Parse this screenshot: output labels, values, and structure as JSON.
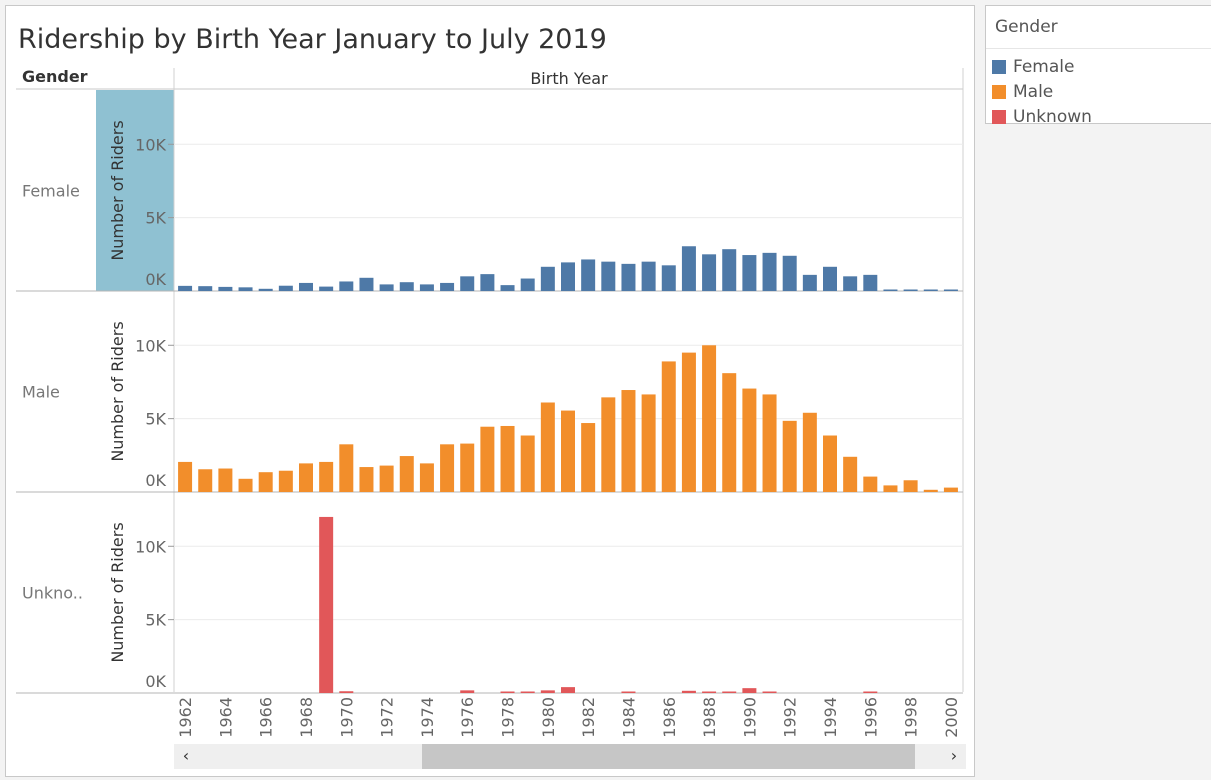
{
  "title": "Ridership by Birth Year January to July 2019",
  "row_header": "Gender",
  "column_header": "Birth Year",
  "legend": {
    "title": "Gender",
    "items": [
      {
        "label": "Female",
        "color": "#4e79a7"
      },
      {
        "label": "Male",
        "color": "#f28e2b"
      },
      {
        "label": "Unknown",
        "color": "#e15759"
      }
    ]
  },
  "chart_data": {
    "type": "bar",
    "title": "Ridership by Birth Year January to July 2019",
    "xlabel": "Birth Year",
    "ylabel": "Number of Riders",
    "categories": [
      1962,
      1963,
      1964,
      1965,
      1966,
      1967,
      1968,
      1969,
      1970,
      1971,
      1972,
      1973,
      1974,
      1975,
      1976,
      1977,
      1978,
      1979,
      1980,
      1981,
      1982,
      1983,
      1984,
      1985,
      1986,
      1987,
      1988,
      1989,
      1990,
      1991,
      1992,
      1993,
      1994,
      1995,
      1996,
      1997,
      1998,
      1999,
      2000
    ],
    "x_tick_labels": [
      "1962",
      "1964",
      "1966",
      "1968",
      "1970",
      "1972",
      "1974",
      "1976",
      "1978",
      "1980",
      "1982",
      "1984",
      "1986",
      "1988",
      "1990",
      "1992",
      "1994",
      "1996",
      "1998",
      "2000"
    ],
    "y_tick_labels": [
      "0K",
      "5K",
      "10K"
    ],
    "ylim": [
      0,
      12200
    ],
    "grid": true,
    "legend_position": "right",
    "series": [
      {
        "name": "Female",
        "row_label": "Female",
        "color": "#4e79a7",
        "values": [
          350,
          330,
          280,
          250,
          150,
          360,
          550,
          300,
          650,
          900,
          450,
          600,
          450,
          550,
          1000,
          1150,
          400,
          850,
          1650,
          1950,
          2150,
          2000,
          1850,
          2000,
          1750,
          3050,
          2500,
          2850,
          2450,
          2600,
          2400,
          1100,
          1650,
          1000,
          1100,
          100,
          100,
          80,
          50
        ]
      },
      {
        "name": "Male",
        "row_label": "Male",
        "color": "#f28e2b",
        "values": [
          2050,
          1550,
          1600,
          900,
          1350,
          1450,
          1950,
          2050,
          3250,
          1700,
          1800,
          2450,
          1950,
          3250,
          3300,
          4450,
          4500,
          3850,
          6100,
          5550,
          4700,
          6450,
          6950,
          6650,
          8900,
          9500,
          10000,
          8100,
          7050,
          6650,
          4850,
          5400,
          3850,
          2400,
          1050,
          450,
          800,
          150,
          300
        ]
      },
      {
        "name": "Unknown",
        "row_label": "Unkno..",
        "color": "#e15759",
        "values": [
          0,
          0,
          0,
          0,
          0,
          0,
          0,
          12000,
          120,
          0,
          0,
          0,
          0,
          0,
          180,
          0,
          100,
          60,
          180,
          400,
          0,
          0,
          50,
          0,
          0,
          150,
          80,
          60,
          330,
          60,
          0,
          0,
          0,
          0,
          60,
          0,
          0,
          0,
          0
        ]
      }
    ]
  }
}
